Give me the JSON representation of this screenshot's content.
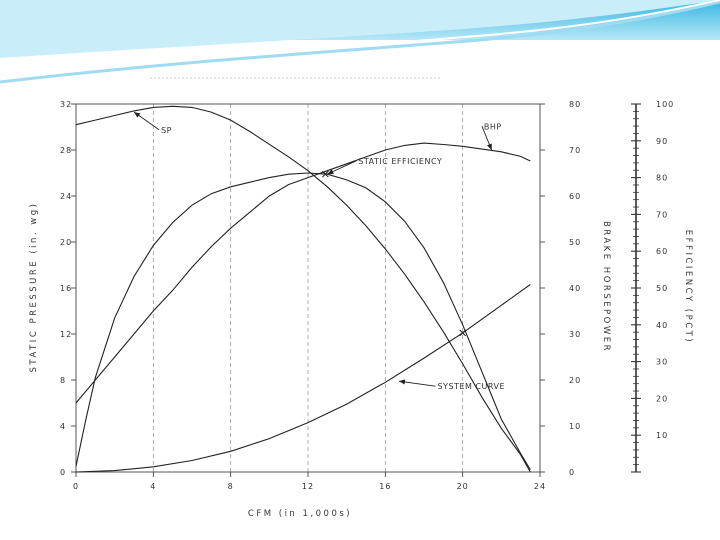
{
  "colors": {
    "slide_top": "#5bc8ea",
    "slide_wave": "#b6e6f6",
    "curve": "#222222",
    "grid": "#999999"
  },
  "chart_data": {
    "type": "line",
    "title": "",
    "xlabel": "CFM (in 1,000s)",
    "xlim": [
      0,
      24
    ],
    "x_ticks": [
      0,
      4,
      8,
      12,
      16,
      20,
      24
    ],
    "x_tick_labels": [
      "0",
      "4",
      "8",
      "12",
      "16",
      "20",
      "24"
    ],
    "left_axis": {
      "label": "STATIC PRESSURE (in. wg)",
      "lim": [
        0,
        32
      ],
      "ticks": [
        0,
        4,
        8,
        12,
        16,
        20,
        24,
        28,
        32
      ],
      "tick_labels": [
        "0",
        "4",
        "8",
        "12",
        "16",
        "20",
        "24",
        "28",
        "32"
      ]
    },
    "middle_axis": {
      "label": "BRAKE HORSEPOWER",
      "lim": [
        0,
        80
      ],
      "ticks": [
        0,
        10,
        20,
        30,
        40,
        50,
        60,
        70,
        80
      ],
      "tick_labels": [
        "0",
        "10",
        "20",
        "30",
        "40",
        "50",
        "60",
        "70",
        "80"
      ]
    },
    "right_axis": {
      "label": "EFFICIENCY (PCT)",
      "lim": [
        0,
        100
      ],
      "ticks": [
        10,
        20,
        30,
        40,
        50,
        60,
        70,
        80,
        90,
        100
      ],
      "tick_labels": [
        "10",
        "20",
        "30",
        "40",
        "50",
        "60",
        "70",
        "80",
        "90",
        "100"
      ]
    },
    "grid": {
      "vertical": true,
      "horizontal": false
    },
    "series": [
      {
        "axis": "left",
        "x": [
          0,
          1,
          2,
          3,
          4,
          5,
          6,
          7,
          8,
          9,
          10,
          11,
          12,
          13,
          14,
          15,
          16,
          17,
          18,
          19,
          20,
          21,
          22,
          23,
          23.5
        ],
        "y": [
          30.2,
          30.6,
          31.0,
          31.4,
          31.7,
          31.8,
          31.7,
          31.3,
          30.6,
          29.6,
          28.5,
          27.4,
          26.2,
          24.8,
          23.2,
          21.4,
          19.4,
          17.2,
          14.8,
          12.2,
          9.4,
          6.5,
          3.8,
          1.5,
          0
        ]
      },
      {
        "axis": "middle",
        "x": [
          0,
          1,
          2,
          3,
          4,
          5,
          6,
          7,
          8,
          9,
          10,
          11,
          12,
          13,
          14,
          15,
          16,
          17,
          18,
          19,
          20,
          21,
          22,
          23,
          23.5
        ],
        "y": [
          15,
          20,
          25,
          30,
          35,
          39.5,
          44.5,
          49,
          53,
          56.5,
          60,
          62.5,
          64,
          65.5,
          67,
          68.5,
          70,
          71,
          71.5,
          71.2,
          70.8,
          70.2,
          69.6,
          68.6,
          67.6
        ]
      },
      {
        "axis": "left",
        "x": [
          0,
          0.5,
          1,
          2,
          3,
          4,
          5,
          6,
          7,
          8,
          9,
          10,
          11,
          12,
          13,
          14,
          15,
          16,
          17,
          18,
          19,
          20,
          21,
          22,
          23,
          23.5
        ],
        "y": [
          0.5,
          4.5,
          8.2,
          13.4,
          17.0,
          19.7,
          21.7,
          23.2,
          24.2,
          24.8,
          25.2,
          25.6,
          25.9,
          26.0,
          25.9,
          25.4,
          24.7,
          23.5,
          21.8,
          19.5,
          16.5,
          12.8,
          8.7,
          4.6,
          1.6,
          0.2
        ]
      },
      {
        "axis": "left",
        "x": [
          0,
          2,
          4,
          6,
          8,
          10,
          12,
          14,
          16,
          18,
          20,
          22,
          23.5
        ],
        "y": [
          0,
          0.12,
          0.45,
          1.0,
          1.8,
          2.9,
          4.3,
          5.9,
          7.8,
          9.9,
          12.1,
          14.5,
          16.3
        ]
      }
    ],
    "annotations": [
      {
        "text": "SP",
        "x": 4.4,
        "y": 29.5,
        "arrow_to": [
          3,
          31.3
        ]
      },
      {
        "text": "BHP",
        "x": 21.1,
        "y": 74.5,
        "arrow_to": [
          21.5,
          70.0
        ]
      },
      {
        "text": "STATIC EFFICIENCY",
        "x": 14.6,
        "y": 26.8,
        "arrow_to": [
          13.0,
          25.9
        ]
      },
      {
        "text": "SYSTEM CURVE",
        "x": 18.7,
        "y": 7.2,
        "arrow_to": [
          16.7,
          7.9
        ]
      }
    ]
  }
}
